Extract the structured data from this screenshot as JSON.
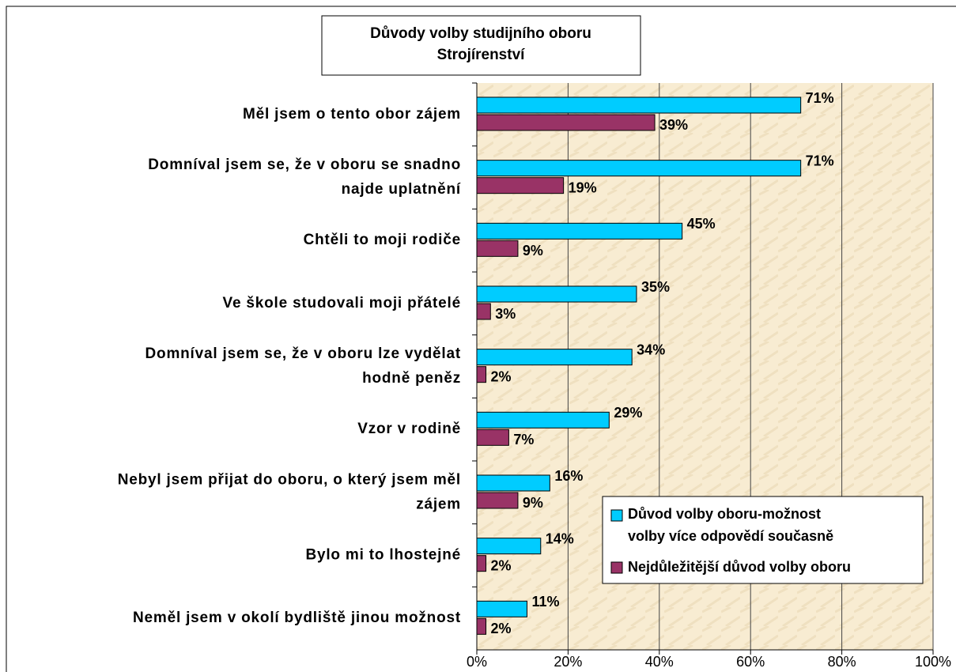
{
  "chart_data": {
    "type": "bar",
    "orientation": "horizontal",
    "title": [
      "Důvody volby studijního oboru",
      "Strojírenství"
    ],
    "categories": [
      "Měl jsem o tento obor zájem",
      "Domníval jsem se, že v oboru se snadno\nnajde uplatnění",
      "Chtěli to moji rodiče",
      "Ve škole studovali moji přátelé",
      "Domníval jsem se, že v oboru lze vydělat\nhodně peněz",
      "Vzor v rodině",
      "Nebyl jsem přijat do oboru, o který jsem měl\nzájem",
      "Bylo mi to lhostejné",
      "Neměl jsem v okolí bydliště jinou možnost"
    ],
    "series": [
      {
        "name": "Důvod volby oboru-možnost\nvolby více odpovědí současně",
        "color": "#00ccff",
        "values": [
          71,
          71,
          45,
          35,
          34,
          29,
          16,
          14,
          11
        ],
        "value_labels": [
          "71%",
          "71%",
          "45%",
          "35%",
          "34%",
          "29%",
          "16%",
          "14%",
          "11%"
        ]
      },
      {
        "name": "Nejdůležitější důvod volby oboru",
        "color": "#993366",
        "values": [
          39,
          19,
          9,
          3,
          2,
          7,
          9,
          2,
          2
        ],
        "value_labels": [
          "39%",
          "19%",
          "9%",
          "3%",
          "2%",
          "7%",
          "9%",
          "2%",
          "2%"
        ]
      }
    ],
    "xlim": [
      0,
      100
    ],
    "xticks": [
      {
        "value": 0,
        "label": "0%"
      },
      {
        "value": 20,
        "label": "20%"
      },
      {
        "value": 40,
        "label": "40%"
      },
      {
        "value": 60,
        "label": "60%"
      },
      {
        "value": 80,
        "label": "80%"
      },
      {
        "value": 100,
        "label": "100%"
      }
    ],
    "grid": true,
    "legend": "lower right"
  }
}
